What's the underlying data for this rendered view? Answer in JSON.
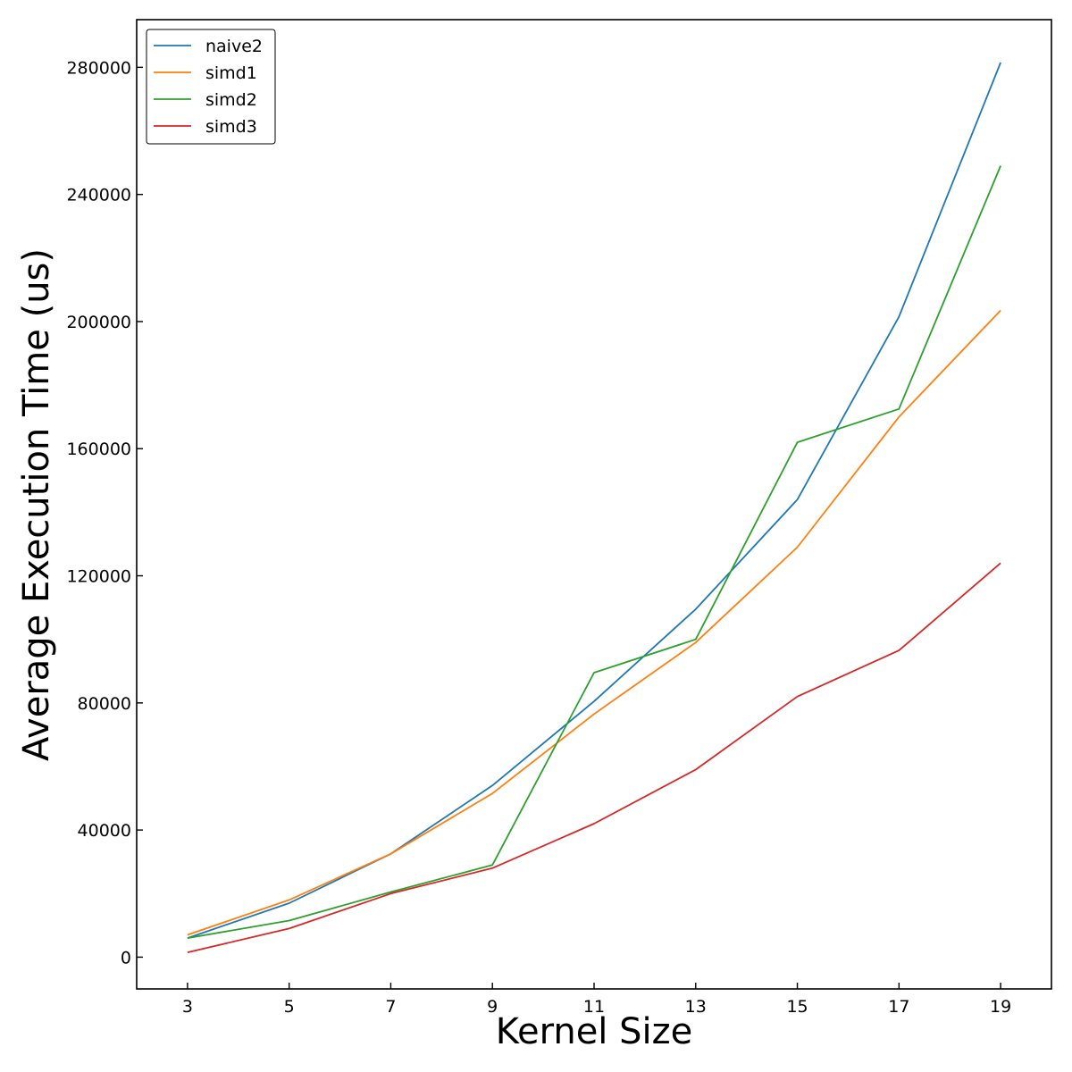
{
  "chart_data": {
    "type": "line",
    "title": "",
    "xlabel": "Kernel Size",
    "ylabel": "Average Execution Time (us)",
    "x": [
      3,
      5,
      7,
      9,
      11,
      13,
      15,
      17,
      19
    ],
    "x_ticks": [
      "3",
      "5",
      "7",
      "9",
      "11",
      "13",
      "15",
      "17",
      "19"
    ],
    "y_ticks": [
      "0",
      "40000",
      "80000",
      "120000",
      "160000",
      "200000",
      "240000",
      "280000"
    ],
    "xlim": [
      2,
      20
    ],
    "ylim": [
      -10000,
      295000
    ],
    "grid": false,
    "legend_position": "top-left",
    "series": [
      {
        "name": "naive2",
        "color": "#1f77b4",
        "values": [
          6000,
          17000,
          32500,
          54000,
          80500,
          109500,
          144000,
          201500,
          281500
        ]
      },
      {
        "name": "simd1",
        "color": "#ff7f0e",
        "values": [
          7000,
          18000,
          32500,
          51500,
          76500,
          99000,
          129000,
          170000,
          203500
        ]
      },
      {
        "name": "simd2",
        "color": "#2ca02c",
        "values": [
          6000,
          11500,
          20500,
          29000,
          89500,
          100000,
          162000,
          172500,
          249000
        ]
      },
      {
        "name": "simd3",
        "color": "#d62728",
        "values": [
          1500,
          9000,
          20000,
          28000,
          42000,
          59000,
          82000,
          96500,
          124000
        ]
      }
    ]
  }
}
